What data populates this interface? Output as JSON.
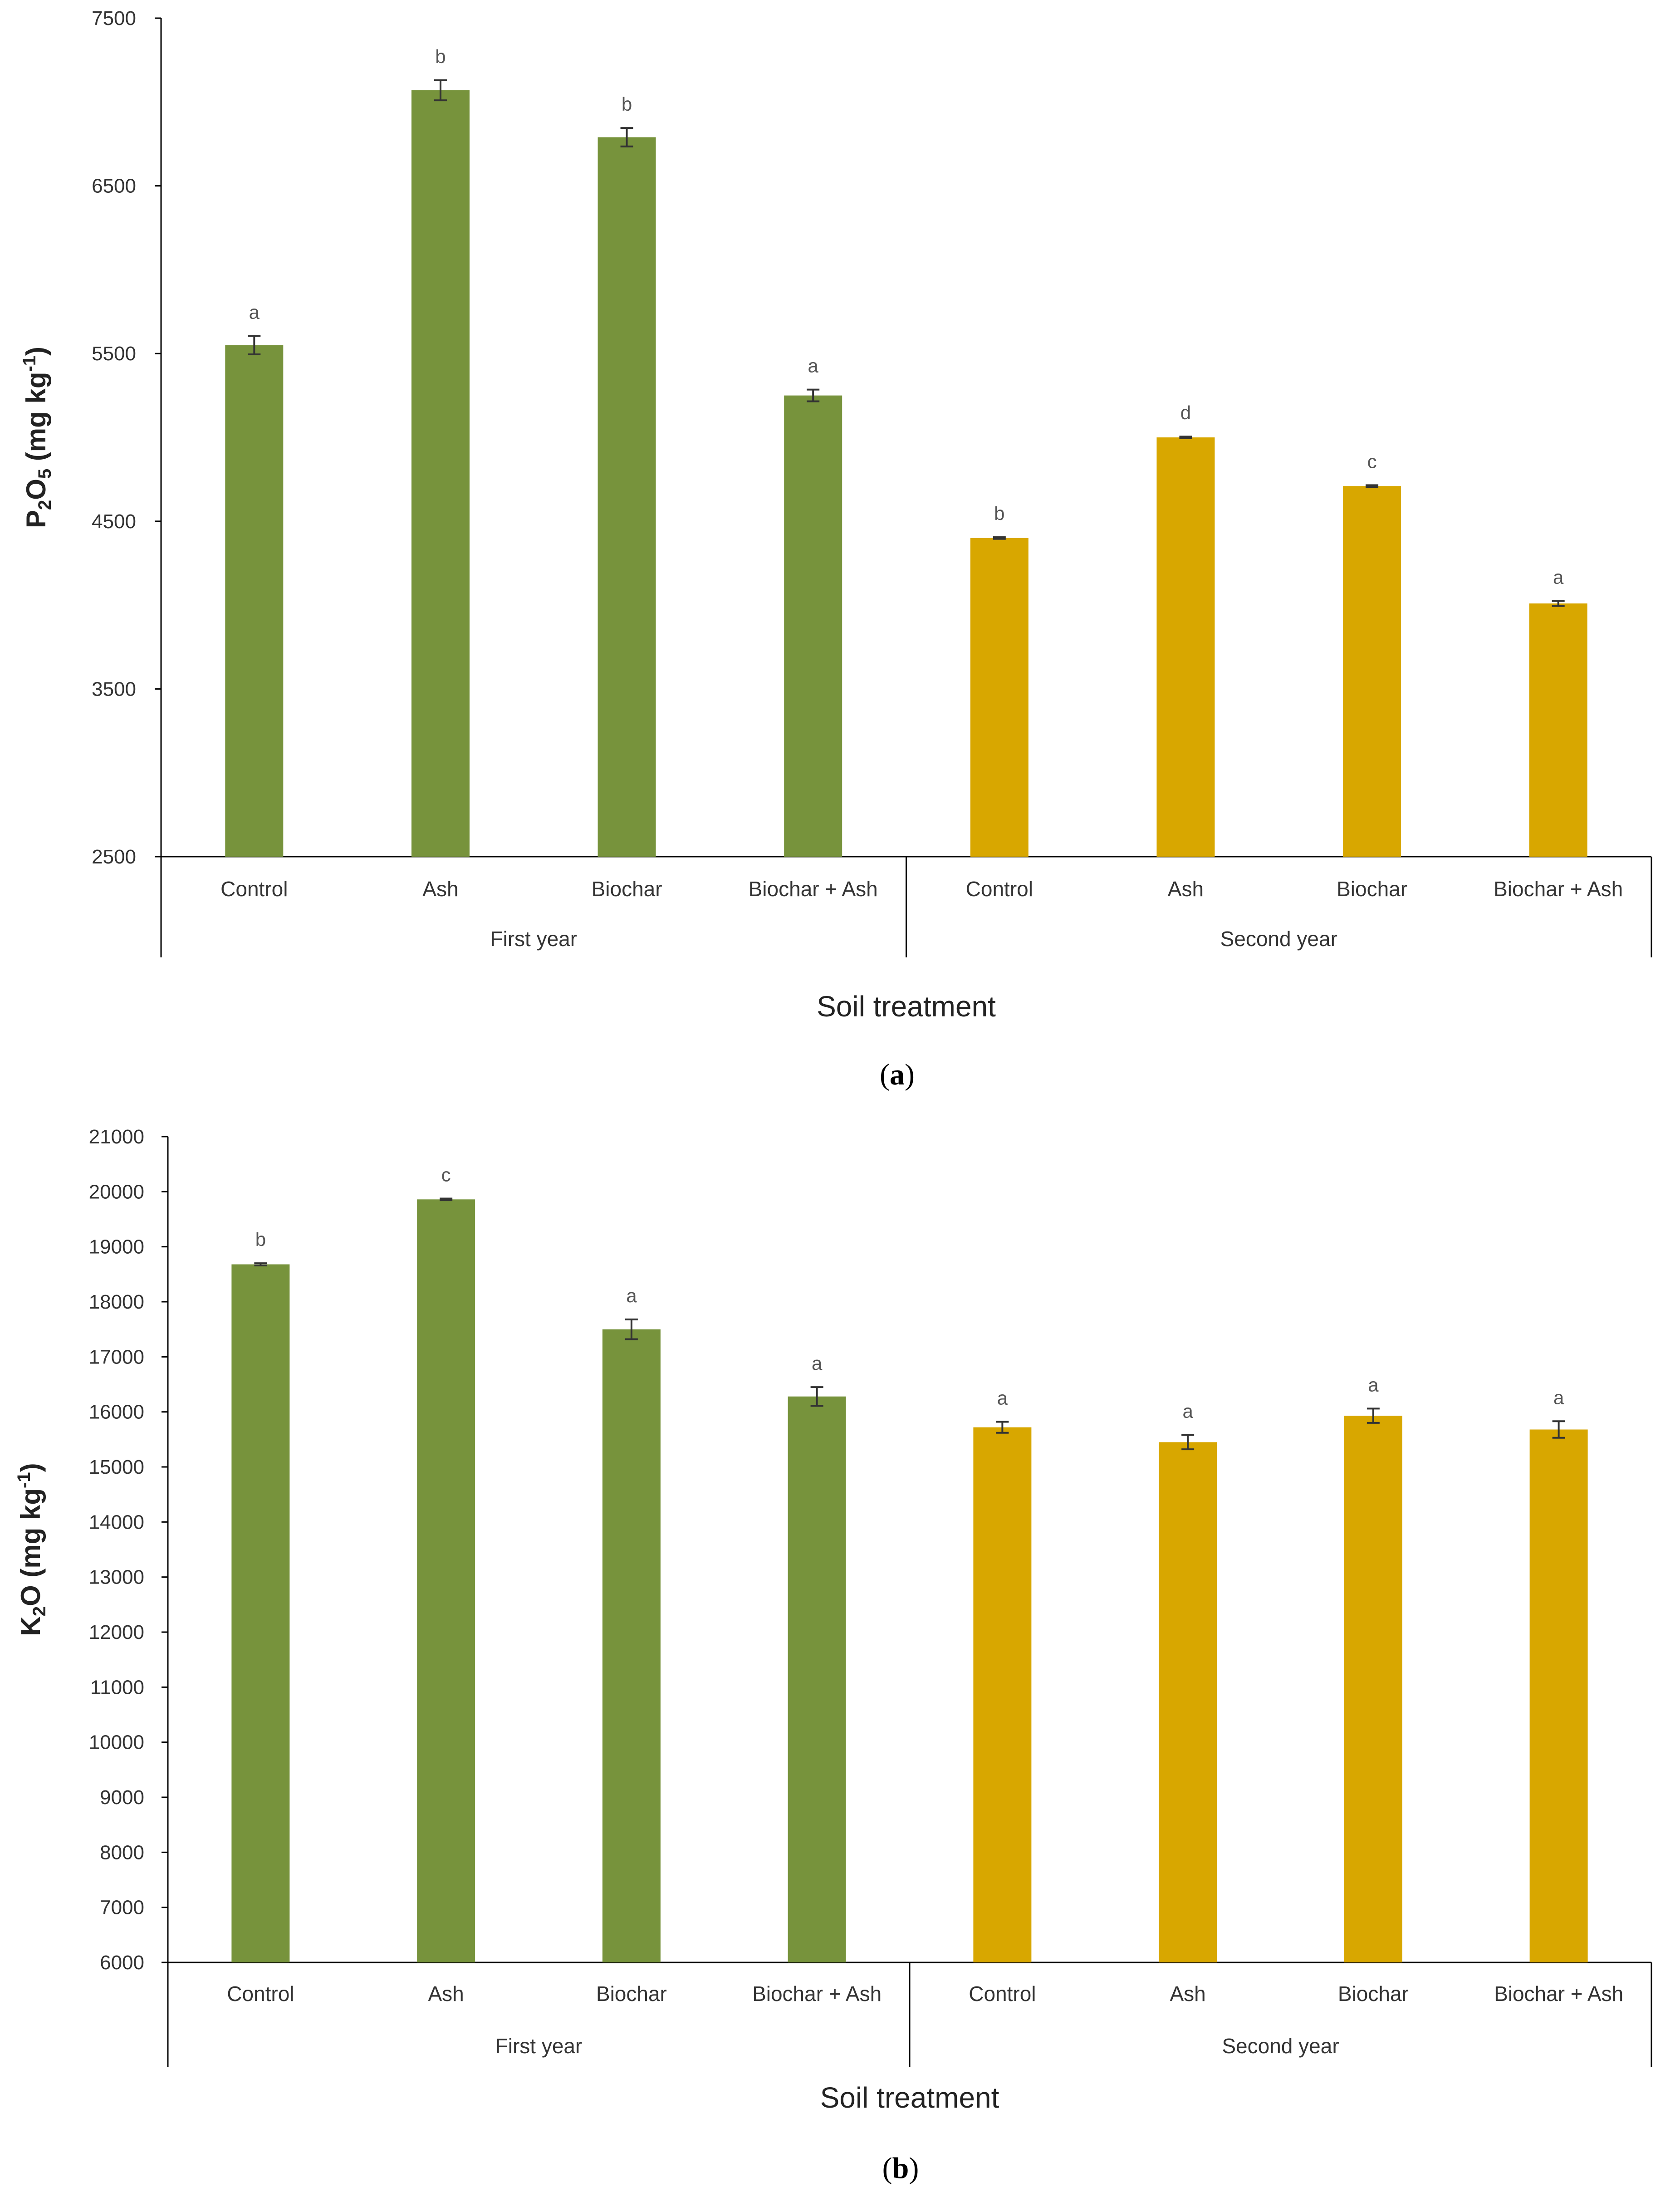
{
  "colors": {
    "first_year": "#77933C",
    "second_year": "#D8A700"
  },
  "chart_data": [
    {
      "type": "bar",
      "panel": "a",
      "caption": "(a)",
      "caption_letter": "a",
      "ylabel": {
        "base1": "P",
        "sub1": "2",
        "base2": "O",
        "sub2": "5",
        "unit_open": " (mg kg",
        "unit_sup": "-1",
        "unit_close": ")"
      },
      "xlabel": "Soil treatment",
      "ylim": [
        2500,
        7500
      ],
      "yticks": [
        2500,
        3500,
        4500,
        5500,
        6500,
        7500
      ],
      "groups": [
        {
          "name": "First year",
          "series_color": "first_year",
          "categories": [
            "Control",
            "Ash",
            "Biochar",
            "Biochar + Ash"
          ],
          "values": [
            5550,
            7070,
            6790,
            5250
          ],
          "errors": [
            55,
            60,
            55,
            35
          ],
          "letters": [
            "a",
            "b",
            "b",
            "a"
          ]
        },
        {
          "name": "Second year",
          "series_color": "second_year",
          "categories": [
            "Control",
            "Ash",
            "Biochar",
            "Biochar + Ash"
          ],
          "values": [
            4400,
            5000,
            4710,
            4010
          ],
          "errors": [
            5,
            5,
            5,
            15
          ],
          "letters": [
            "b",
            "d",
            "c",
            "a"
          ]
        }
      ]
    },
    {
      "type": "bar",
      "panel": "b",
      "caption": "(b)",
      "caption_letter": "b",
      "ylabel": {
        "base1": "K",
        "sub1": "2",
        "base2": "O",
        "sub2": "",
        "unit_open": " (mg kg",
        "unit_sup": "-1",
        "unit_close": ")"
      },
      "xlabel": "Soil treatment",
      "ylim": [
        6000,
        21000
      ],
      "yticks": [
        6000,
        7000,
        8000,
        9000,
        10000,
        11000,
        12000,
        13000,
        14000,
        15000,
        16000,
        17000,
        18000,
        19000,
        20000,
        21000
      ],
      "groups": [
        {
          "name": "First year",
          "series_color": "first_year",
          "categories": [
            "Control",
            "Ash",
            "Biochar",
            "Biochar + Ash"
          ],
          "values": [
            18680,
            19860,
            17500,
            16280
          ],
          "errors": [
            20,
            15,
            180,
            170
          ],
          "letters": [
            "b",
            "c",
            "a",
            "a"
          ]
        },
        {
          "name": "Second year",
          "series_color": "second_year",
          "categories": [
            "Control",
            "Ash",
            "Biochar",
            "Biochar + Ash"
          ],
          "values": [
            15720,
            15450,
            15930,
            15680
          ],
          "errors": [
            100,
            130,
            130,
            150
          ],
          "letters": [
            "a",
            "a",
            "a",
            "a"
          ]
        }
      ]
    }
  ]
}
